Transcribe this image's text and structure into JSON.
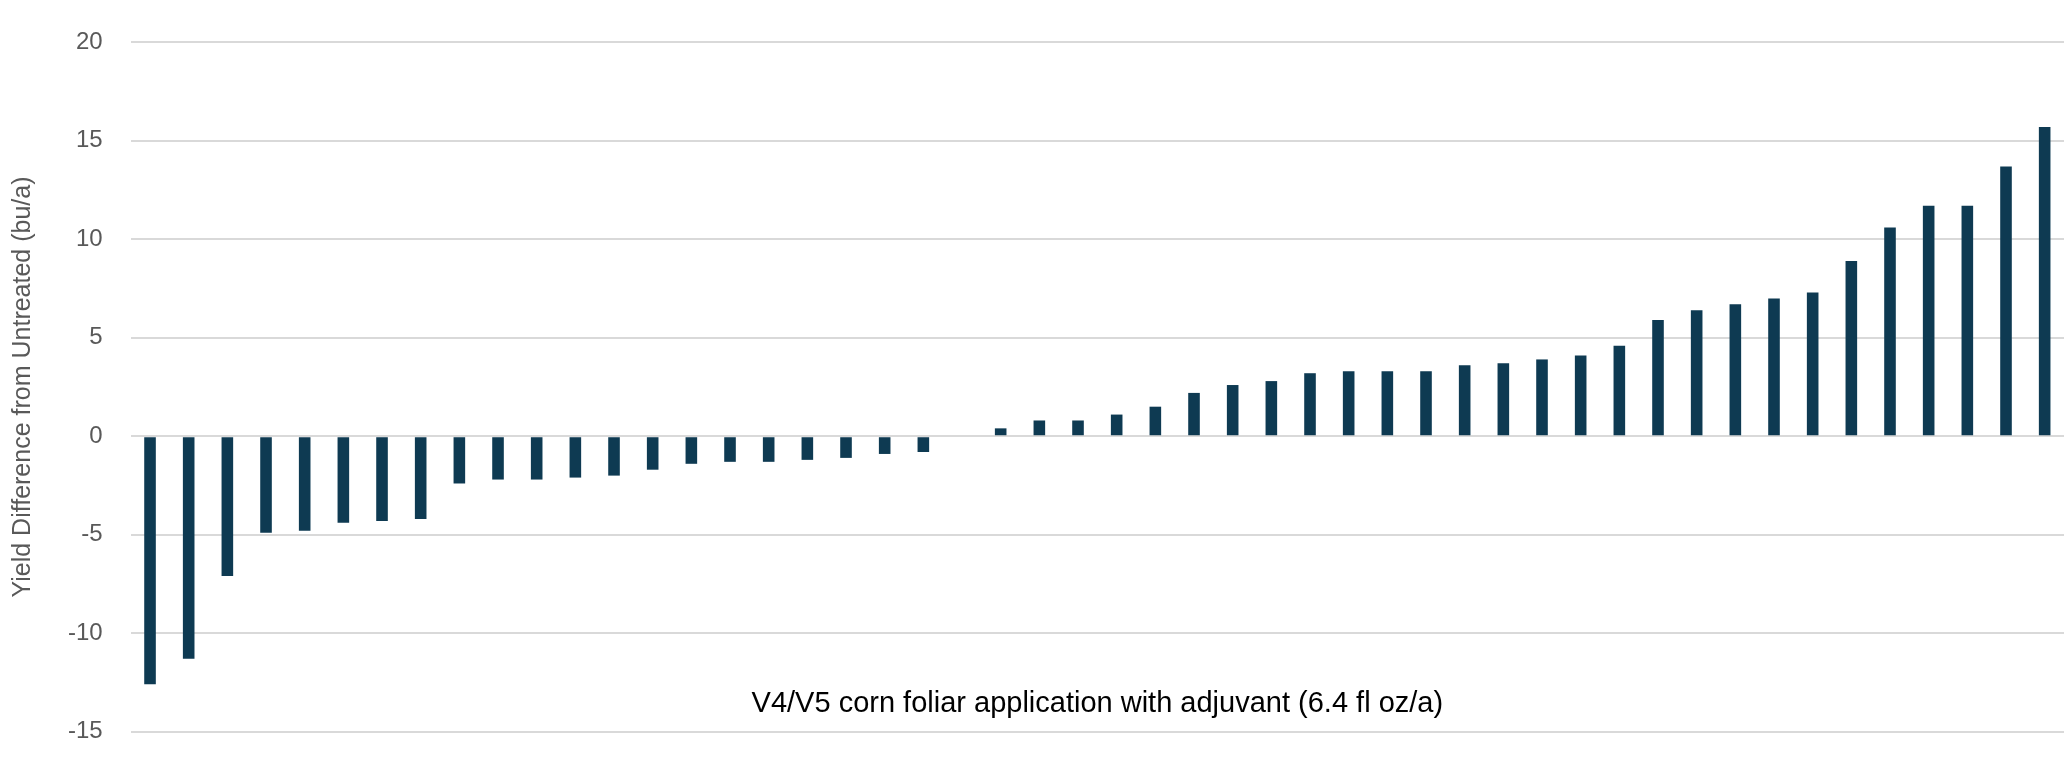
{
  "chart_data": {
    "type": "bar",
    "ylabel": "Yield Difference from Untreated (bu/a)",
    "annotations": [
      "V4/V5 corn foliar application with adjuvant (6.4 fl oz/a)"
    ],
    "categories": [
      null,
      null,
      null,
      null,
      null,
      null,
      null,
      null,
      null,
      null,
      null,
      null,
      null,
      null,
      null,
      null,
      null,
      null,
      null,
      null,
      null,
      null,
      null,
      null,
      null,
      null,
      null,
      null,
      null,
      null,
      null,
      null,
      null,
      null,
      null,
      null,
      null,
      null,
      null,
      null,
      null,
      null,
      null,
      null,
      null,
      null,
      null,
      null,
      null,
      null
    ],
    "values": [
      -12.6,
      -11.3,
      -7.1,
      -4.9,
      -4.8,
      -4.4,
      -4.3,
      -4.2,
      -2.4,
      -2.2,
      -2.2,
      -2.1,
      -2.0,
      -1.7,
      -1.4,
      -1.3,
      -1.3,
      -1.2,
      -1.1,
      -0.9,
      -0.8,
      0,
      0.4,
      0.8,
      0.8,
      1.1,
      1.5,
      2.2,
      2.6,
      2.8,
      3.2,
      3.3,
      3.3,
      3.3,
      3.6,
      3.7,
      3.9,
      4.1,
      4.6,
      5.9,
      6.4,
      6.7,
      7.0,
      7.3,
      8.9,
      10.6,
      11.7,
      11.7,
      13.7,
      15.7
    ],
    "color": "#0e3a52",
    "ylim": [
      -15,
      20
    ],
    "yticks": [
      -15,
      -10,
      -5,
      0,
      5,
      10,
      15,
      20
    ],
    "grid": "y",
    "tick_labels": "y"
  }
}
